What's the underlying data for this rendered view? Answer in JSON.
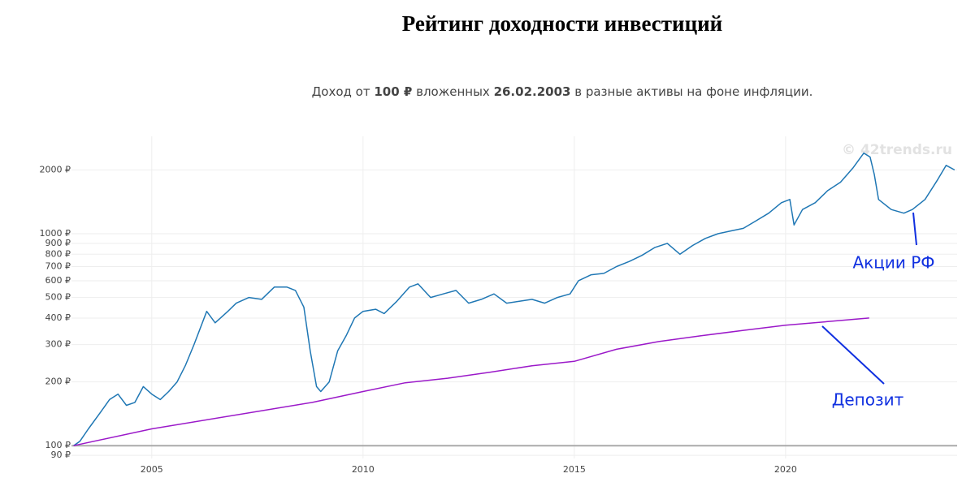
{
  "chart_data": {
    "type": "line",
    "title": "Рейтинг доходности инвестиций",
    "subtitle": [
      "Доход от ",
      "100 ₽",
      " вложенных ",
      "26.02.2003",
      " в разные активы на фоне инфляции."
    ],
    "watermark": "© 42trends.ru",
    "log_y": true,
    "grid": true,
    "baseline": 100,
    "xlim": [
      2003.1,
      2024.06
    ],
    "xticks": [
      2005,
      2010,
      2015,
      2020
    ],
    "ylim": [
      87,
      2880
    ],
    "yticks": [
      {
        "value": 90,
        "label": "90 ₽"
      },
      {
        "value": 100,
        "label": "100 ₽"
      },
      {
        "value": 200,
        "label": "200 ₽"
      },
      {
        "value": 300,
        "label": "300 ₽"
      },
      {
        "value": 400,
        "label": "400 ₽"
      },
      {
        "value": 500,
        "label": "500 ₽"
      },
      {
        "value": 600,
        "label": "600 ₽"
      },
      {
        "value": 700,
        "label": "700 ₽"
      },
      {
        "value": 800,
        "label": "800 ₽"
      },
      {
        "value": 900,
        "label": "900 ₽"
      },
      {
        "value": 1000,
        "label": "1000 ₽"
      },
      {
        "value": 2000,
        "label": "2000 ₽"
      }
    ],
    "series": [
      {
        "name": "Акции РФ",
        "color": "#1f77b4",
        "x": [
          2003.15,
          2003.3,
          2003.5,
          2003.8,
          2004.0,
          2004.2,
          2004.4,
          2004.6,
          2004.8,
          2005.0,
          2005.2,
          2005.4,
          2005.6,
          2005.8,
          2006.0,
          2006.3,
          2006.5,
          2006.8,
          2007.0,
          2007.3,
          2007.6,
          2007.9,
          2008.2,
          2008.4,
          2008.6,
          2008.75,
          2008.9,
          2009.0,
          2009.2,
          2009.4,
          2009.6,
          2009.8,
          2010.0,
          2010.3,
          2010.5,
          2010.8,
          2011.1,
          2011.3,
          2011.6,
          2011.9,
          2012.2,
          2012.5,
          2012.8,
          2013.1,
          2013.4,
          2013.7,
          2014.0,
          2014.3,
          2014.6,
          2014.9,
          2015.1,
          2015.4,
          2015.7,
          2016.0,
          2016.3,
          2016.6,
          2016.9,
          2017.2,
          2017.5,
          2017.8,
          2018.1,
          2018.4,
          2018.7,
          2019.0,
          2019.3,
          2019.6,
          2019.9,
          2020.1,
          2020.2,
          2020.4,
          2020.7,
          2021.0,
          2021.3,
          2021.6,
          2021.85,
          2022.0,
          2022.1,
          2022.2,
          2022.5,
          2022.8,
          2023.0,
          2023.3,
          2023.6,
          2023.8,
          2024.0
        ],
        "values": [
          100,
          105,
          120,
          145,
          165,
          175,
          155,
          160,
          190,
          175,
          165,
          180,
          200,
          240,
          300,
          430,
          380,
          430,
          470,
          500,
          490,
          560,
          560,
          540,
          450,
          280,
          190,
          180,
          200,
          280,
          330,
          400,
          430,
          440,
          420,
          480,
          560,
          580,
          500,
          520,
          540,
          470,
          490,
          520,
          470,
          480,
          490,
          470,
          500,
          520,
          600,
          640,
          650,
          700,
          740,
          790,
          860,
          900,
          800,
          880,
          950,
          1000,
          1030,
          1060,
          1150,
          1250,
          1400,
          1450,
          1100,
          1300,
          1400,
          1600,
          1750,
          2050,
          2400,
          2300,
          1900,
          1450,
          1300,
          1250,
          1300,
          1450,
          1800,
          2100,
          2000
        ]
      },
      {
        "name": "Депозит",
        "color": "#9b19c9",
        "x": [
          2003.15,
          2005,
          2008.8,
          2010,
          2011,
          2012,
          2013,
          2014,
          2015,
          2016,
          2017,
          2018,
          2019,
          2020,
          2021,
          2021.98
        ],
        "values": [
          100,
          120,
          160,
          180,
          198,
          208,
          222,
          238,
          250,
          285,
          310,
          330,
          350,
          370,
          385,
          400
        ]
      }
    ]
  }
}
